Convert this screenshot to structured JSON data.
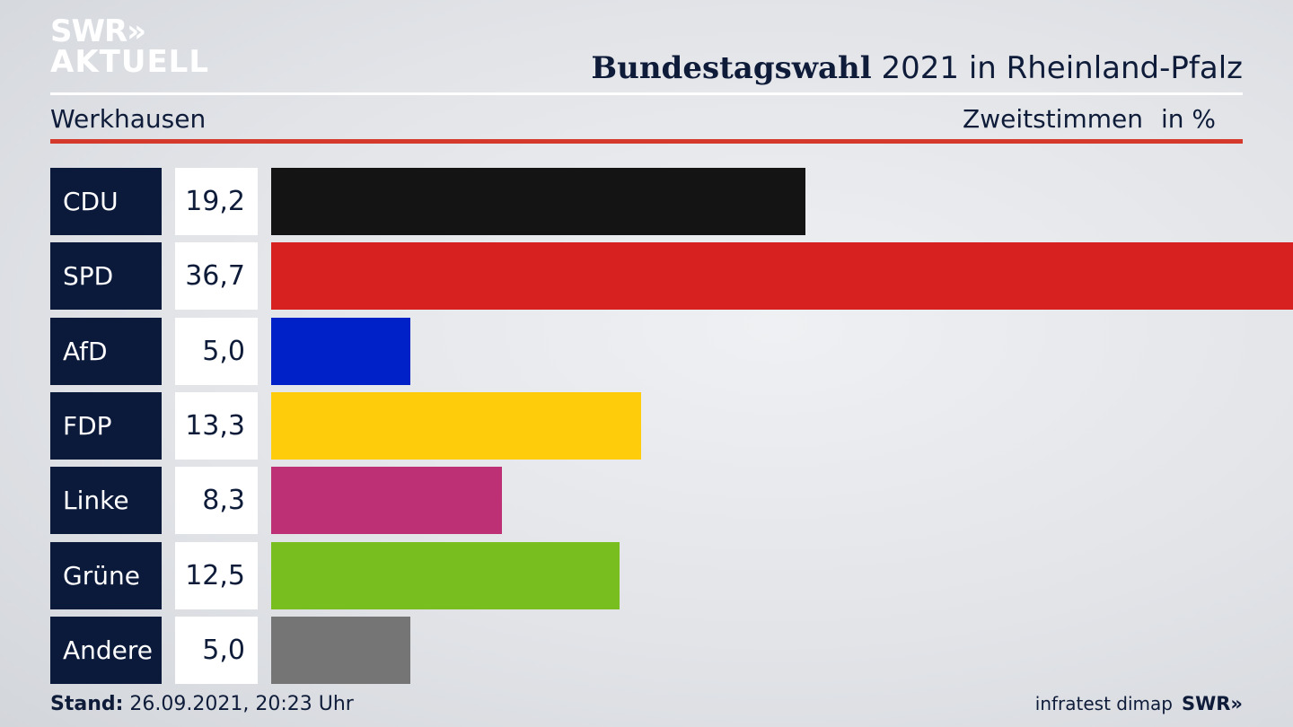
{
  "header": {
    "logo_line1": "SWR»",
    "logo_line2": "AKTUELL",
    "title_bold": "Bundestagswahl",
    "title_rest": " 2021 in Rheinland-Pfalz",
    "region": "Werkhausen",
    "metric": "Zweitstimmen",
    "unit": "in %"
  },
  "chart_data": {
    "type": "bar",
    "orientation": "horizontal",
    "categories": [
      "CDU",
      "SPD",
      "AfD",
      "FDP",
      "Linke",
      "Grüne",
      "Andere"
    ],
    "values": [
      19.2,
      36.7,
      5.0,
      13.3,
      8.3,
      12.5,
      5.0
    ],
    "value_labels": [
      "19,2",
      "36,7",
      "5,0",
      "13,3",
      "8,3",
      "12,5",
      "5,0"
    ],
    "colors": [
      "#141414",
      "#d72121",
      "#0021c8",
      "#fecc0a",
      "#bd3075",
      "#78be1e",
      "#757575"
    ],
    "xlim": [
      0,
      36.7
    ]
  },
  "footer": {
    "stand_label": "Stand:",
    "stand_value": " 26.09.2021, 20:23 Uhr",
    "source": "infratest dimap",
    "brand": "SWR»"
  }
}
